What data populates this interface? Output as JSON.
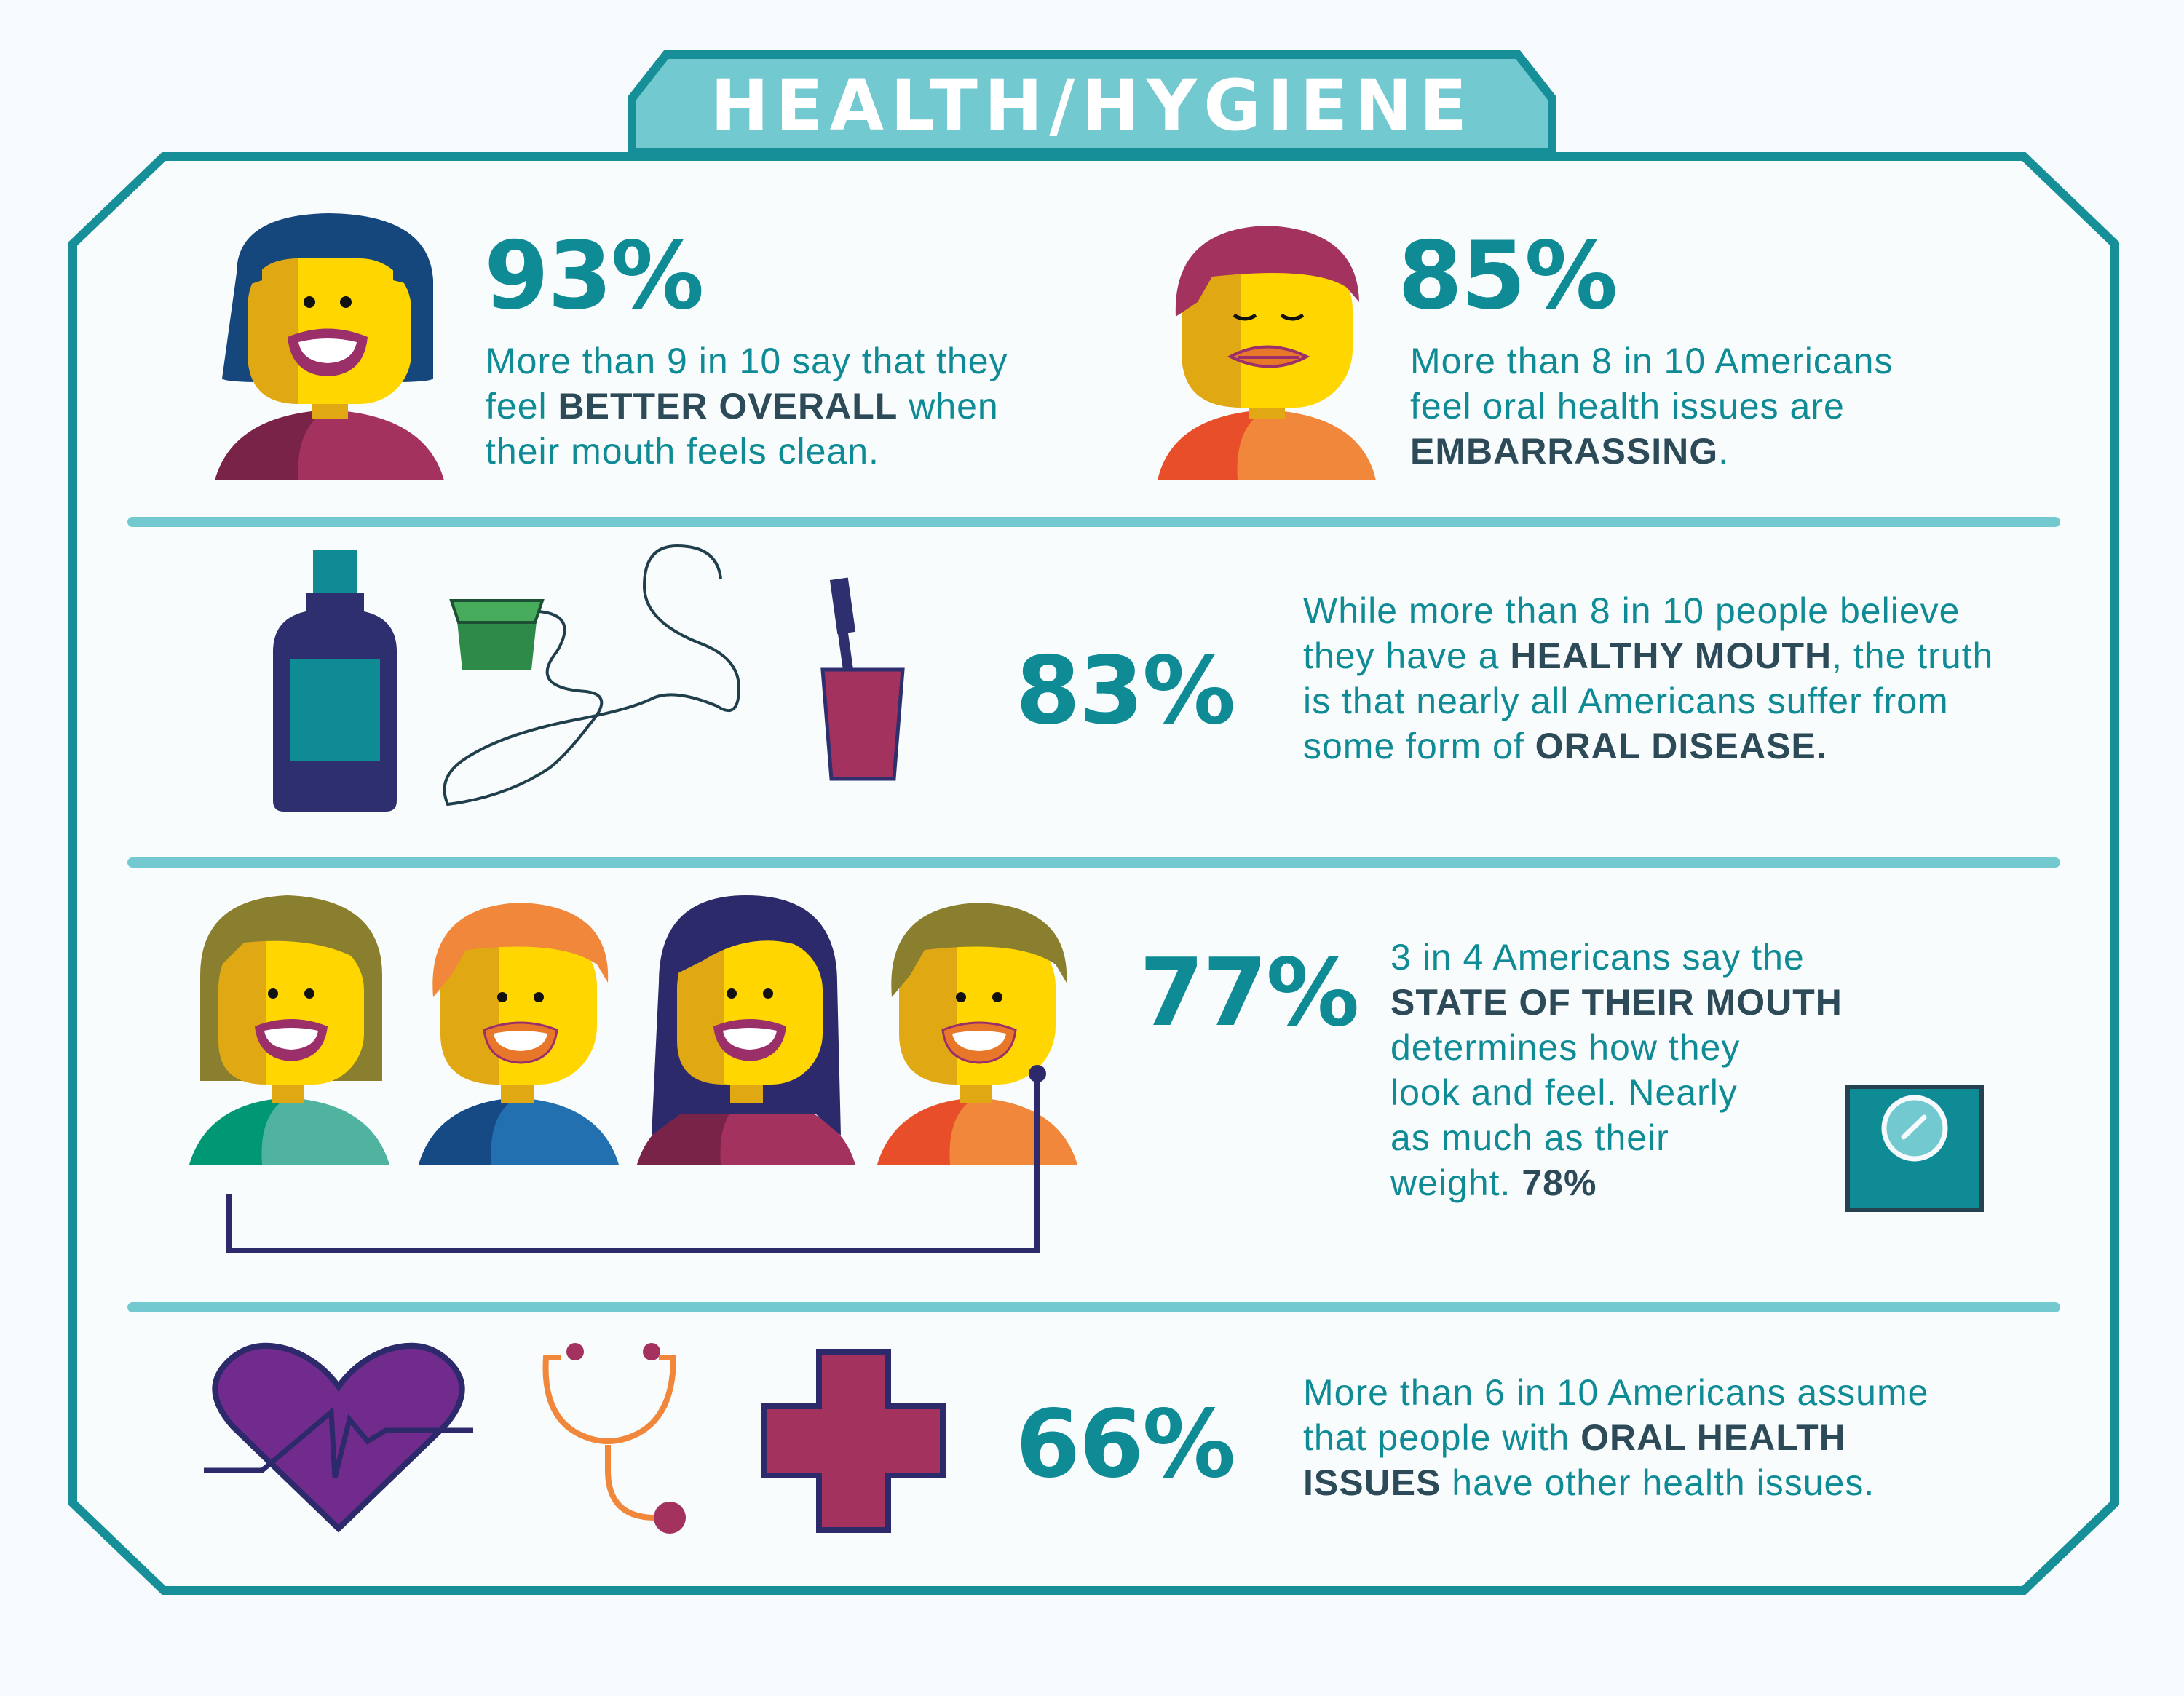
{
  "header": {
    "title": "HEALTH/HYGIENE"
  },
  "stats": [
    {
      "percent": "93%",
      "text": [
        {
          "t": "More than 9 in 10 say that they",
          "b": false
        },
        {
          "t": "feel ",
          "b": false
        },
        {
          "t": "BETTER OVERALL",
          "b": true
        },
        {
          "t": " when",
          "b": false
        },
        {
          "t": "their mouth feels clean.",
          "b": false
        }
      ]
    },
    {
      "percent": "85%",
      "text": [
        {
          "t": "More than 8 in 10 Americans",
          "b": false
        },
        {
          "t": "feel oral health issues are",
          "b": false
        },
        {
          "t": "EMBARRASSING",
          "b": true
        },
        {
          "t": ".",
          "b": false
        }
      ]
    },
    {
      "percent": "83%",
      "text": [
        {
          "t": "While more than 8 in 10 people believe",
          "b": false
        },
        {
          "t": "they have a ",
          "b": false
        },
        {
          "t": "HEALTHY MOUTH",
          "b": true
        },
        {
          "t": ", the truth",
          "b": false
        },
        {
          "t": "is that nearly all Americans suffer from",
          "b": false
        },
        {
          "t": "some form of ",
          "b": false
        },
        {
          "t": "ORAL DISEASE.",
          "b": true
        }
      ]
    },
    {
      "percent": "77%",
      "text": [
        {
          "t": "3 in 4 Americans say the",
          "b": false
        },
        {
          "t": "STATE OF THEIR MOUTH",
          "b": true
        },
        {
          "t": "determines how they",
          "b": false
        },
        {
          "t": "look and feel. Nearly",
          "b": false
        },
        {
          "t": "as much as their",
          "b": false
        },
        {
          "t": "weight. ",
          "b": false
        },
        {
          "t": "78%",
          "b": true
        }
      ]
    },
    {
      "percent": "66%",
      "text": [
        {
          "t": "More than 6 in 10 Americans assume",
          "b": false
        },
        {
          "t": "that people with ",
          "b": false
        },
        {
          "t": "ORAL HEALTH",
          "b": true
        },
        {
          "t": "ISSUES",
          "b": true
        },
        {
          "t": " have other health issues.",
          "b": false
        }
      ]
    }
  ],
  "colors": {
    "frame": "#168f98",
    "header_bg": "#72cad0",
    "divider": "#72cad0",
    "accent_text": "#0f8b96",
    "bold_text": "#2c4a57",
    "face": "#ffd600",
    "face_shadow": "#e0a812"
  },
  "icons": {
    "row1": [
      "smiling-woman-icon",
      "calm-man-icon"
    ],
    "row2": [
      "mouthwash-bottle-icon",
      "dental-floss-icon",
      "toothbrush-cup-icon"
    ],
    "row3": [
      "smiling-group-icon",
      "bathroom-scale-icon"
    ],
    "row4": [
      "heartbeat-icon",
      "stethoscope-icon",
      "medical-cross-icon"
    ]
  }
}
